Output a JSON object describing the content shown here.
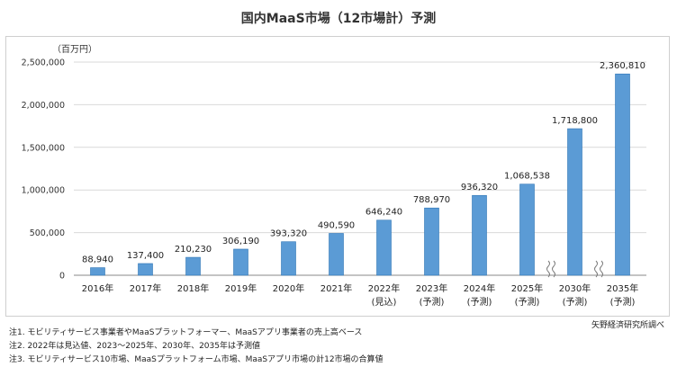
{
  "chart_data": {
    "type": "bar",
    "title": "国内MaaS市場（12市場計）予測",
    "unit_label": "（百万円）",
    "categories": [
      {
        "year": "2016年",
        "sub": ""
      },
      {
        "year": "2017年",
        "sub": ""
      },
      {
        "year": "2018年",
        "sub": ""
      },
      {
        "year": "2019年",
        "sub": ""
      },
      {
        "year": "2020年",
        "sub": ""
      },
      {
        "year": "2021年",
        "sub": ""
      },
      {
        "year": "2022年",
        "sub": "(見込)"
      },
      {
        "year": "2023年",
        "sub": "(予測)"
      },
      {
        "year": "2024年",
        "sub": "(予測)"
      },
      {
        "year": "2025年",
        "sub": "(予測)"
      },
      {
        "year": "2030年",
        "sub": "(予測)"
      },
      {
        "year": "2035年",
        "sub": "(予測)"
      }
    ],
    "values": [
      88940,
      137400,
      210230,
      306190,
      393320,
      490590,
      646240,
      788970,
      936320,
      1068538,
      1718800,
      2360810
    ],
    "value_labels": [
      "88,940",
      "137,400",
      "210,230",
      "306,190",
      "393,320",
      "490,590",
      "646,240",
      "788,970",
      "936,320",
      "1,068,538",
      "1,718,800",
      "2,360,810"
    ],
    "ylim": [
      0,
      2500000
    ],
    "yticks": [
      0,
      500000,
      1000000,
      1500000,
      2000000,
      2500000
    ],
    "ytick_labels": [
      "0",
      "500,000",
      "1,000,000",
      "1,500,000",
      "2,000,000",
      "2,500,000"
    ],
    "grid": true,
    "axis_breaks_after_index": [
      9,
      10
    ],
    "bar_color": "#5b9bd5",
    "bar_edge_color": "#2e75b6"
  },
  "notes": [
    "注1. モビリティサービス事業者やMaaSプラットフォーマー、MaaSアプリ事業者の売上高ベース",
    "注2. 2022年は見込値、2023～2025年、2030年、2035年は予測値",
    "注3. モビリティサービス10市場、MaaSプラットフォーム市場、MaaSアプリ市場の計12市場の合算値"
  ],
  "source": "矢野経済研究所調べ"
}
